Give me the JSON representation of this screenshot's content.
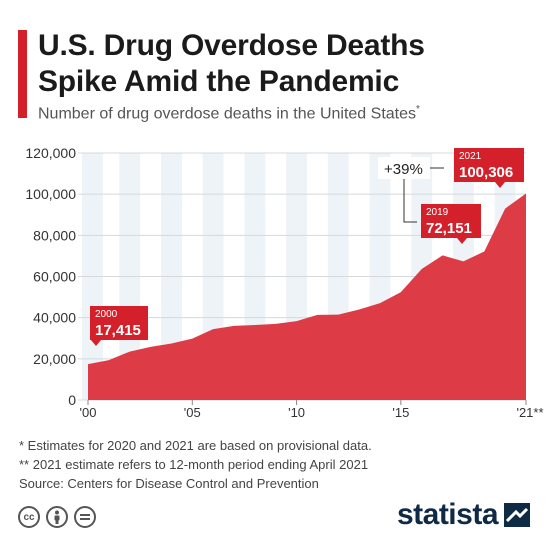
{
  "header": {
    "title_line1": "U.S. Drug Overdose Deaths",
    "title_line2": "Spike Amid the Pandemic",
    "subtitle": "Number of drug overdose deaths in the United States",
    "subtitle_mark": "*"
  },
  "chart_data": {
    "type": "area",
    "title": "U.S. Drug Overdose Deaths Spike Amid the Pandemic",
    "subtitle": "Number of drug overdose deaths in the United States",
    "x": [
      2000,
      2001,
      2002,
      2003,
      2004,
      2005,
      2006,
      2007,
      2008,
      2009,
      2010,
      2011,
      2012,
      2013,
      2014,
      2015,
      2016,
      2017,
      2018,
      2019,
      2020,
      2021
    ],
    "values": [
      17415,
      19394,
      23518,
      25785,
      27424,
      29813,
      34425,
      36010,
      36450,
      37004,
      38329,
      41340,
      41502,
      43982,
      47055,
      52404,
      63632,
      70237,
      67367,
      72151,
      93000,
      100306
    ],
    "ylim": [
      0,
      120000
    ],
    "yticks": [
      "0",
      "20,000",
      "40,000",
      "60,000",
      "80,000",
      "100,000",
      "120,000"
    ],
    "xticks": [
      "'00",
      "'05",
      "'10",
      "'15",
      "'21**"
    ],
    "color": "#dd3c47",
    "annotations": [
      {
        "year": "2000",
        "value": "17,415"
      },
      {
        "year": "2019",
        "value": "72,151"
      },
      {
        "year": "2021",
        "value": "100,306"
      }
    ],
    "change_label": "+39%",
    "grid": true
  },
  "notes": {
    "line1": "*   Estimates for 2020 and 2021 are based on provisional data.",
    "line2": "** 2021 estimate refers to 12-month period ending April 2021",
    "source": "Source: Centers for Disease Control and Prevention"
  },
  "footer": {
    "icons": [
      "cc-icon",
      "attribution-icon",
      "no-derivatives-icon"
    ],
    "cc_text": "cc",
    "logo": "statista"
  }
}
